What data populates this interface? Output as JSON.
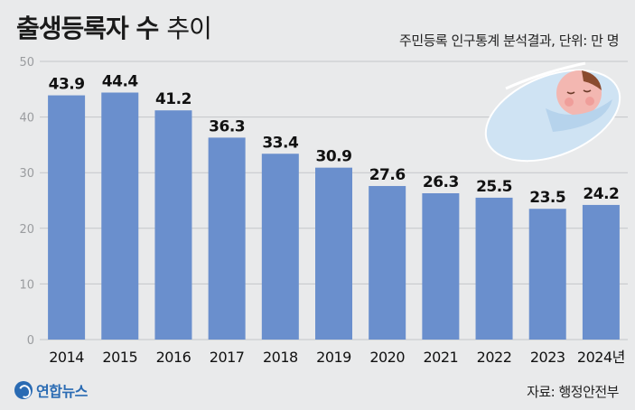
{
  "header": {
    "title": "출생등록자 수",
    "title_suffix": "추이",
    "subtitle": "주민등록 인구통계 분석결과, 단위: 만 명"
  },
  "footer": {
    "logo_text": "연합뉴스",
    "source": "자료: 행정안전부"
  },
  "colors": {
    "bar": "#6a8fcd",
    "background": "#e9eaeb",
    "grid": "#c4c6c9",
    "blanket": "#cfe3f3",
    "baby_face": "#f3b7b1"
  },
  "chart_data": {
    "type": "bar",
    "categories": [
      "2014",
      "2015",
      "2016",
      "2017",
      "2018",
      "2019",
      "2020",
      "2021",
      "2022",
      "2023",
      "2024년"
    ],
    "values": [
      43.9,
      44.4,
      41.2,
      36.3,
      33.4,
      30.9,
      27.6,
      26.3,
      25.5,
      23.5,
      24.2
    ],
    "value_labels": [
      "43.9",
      "44.4",
      "41.2",
      "36.3",
      "33.4",
      "30.9",
      "27.6",
      "26.3",
      "25.5",
      "23.5",
      "24.2"
    ],
    "yticks": [
      0,
      10,
      20,
      30,
      40,
      50
    ],
    "ylim": [
      0,
      50
    ],
    "grid": true,
    "legend": "none"
  }
}
